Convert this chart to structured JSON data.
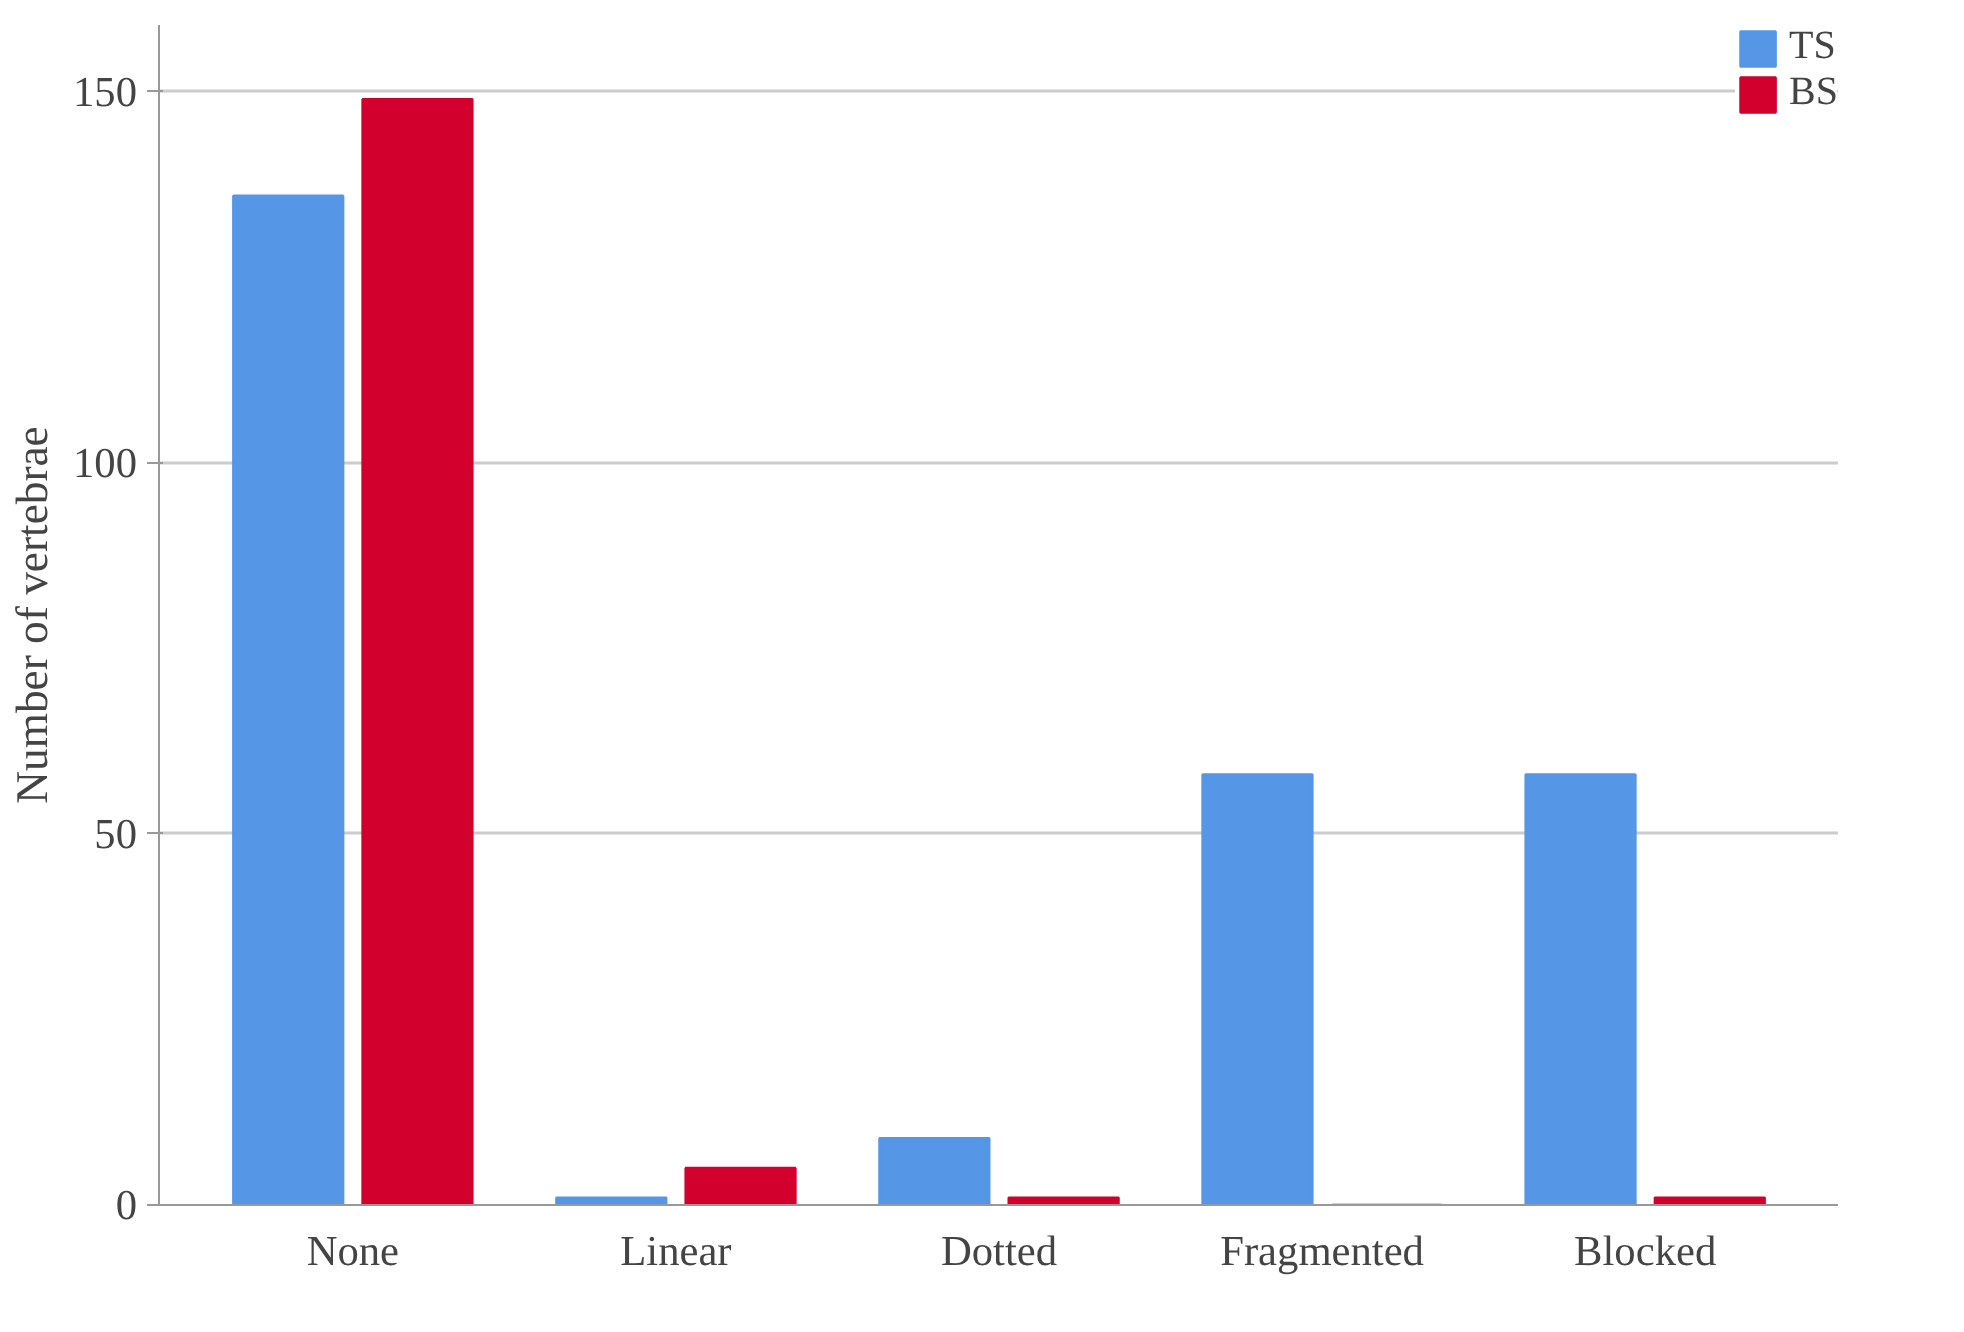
{
  "chart_data": {
    "type": "bar",
    "ylabel": "Number of vertebrae",
    "categories": [
      "None",
      "Linear",
      "Dotted",
      "Fragmented",
      "Blocked"
    ],
    "series": [
      {
        "name": "TS",
        "color": "#5596e6",
        "values": [
          136,
          1,
          9,
          58,
          58
        ]
      },
      {
        "name": "BS",
        "color": "#d2002d",
        "values": [
          149,
          5,
          1,
          0,
          1
        ]
      }
    ],
    "ylim": [
      0,
      159
    ],
    "yticks": [
      0,
      50,
      100,
      150
    ],
    "grid": "y",
    "legend": "top right"
  }
}
